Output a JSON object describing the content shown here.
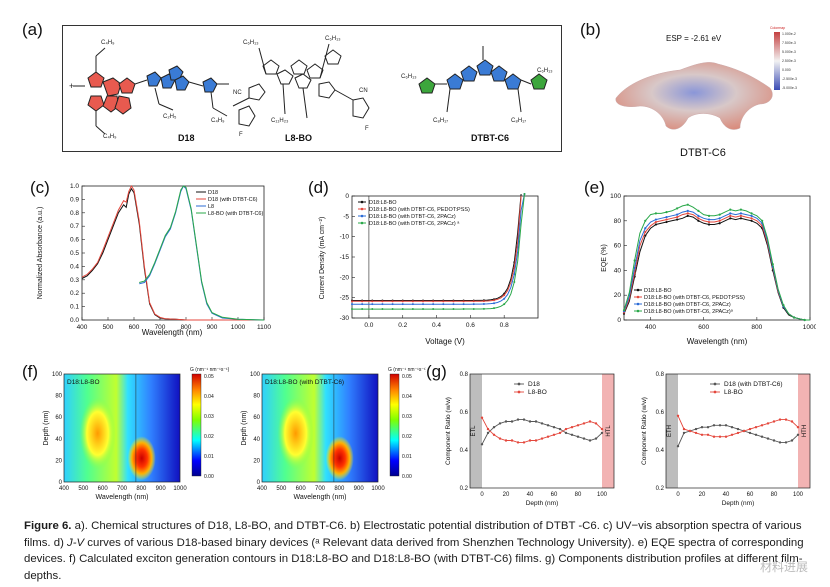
{
  "panels": {
    "a": "(a)",
    "b": "(b)",
    "c": "(c)",
    "d": "(d)",
    "e": "(e)",
    "f": "(f)",
    "g": "(g)"
  },
  "panel_a": {
    "molecules": [
      "D18",
      "L8-BO",
      "DTBT-C6"
    ],
    "labels": {
      "c4h9": "C₄H₉",
      "c6h13": "C₆H₁₃",
      "c2h5": "C₂H₅",
      "c8h17": "C₈H₁₇",
      "c11h23": "C₁₁H₂₃",
      "nc": "NC",
      "cn": "CN",
      "f": "F"
    }
  },
  "panel_b": {
    "esp_text": "ESP = -2.61 eV",
    "molecule_label": "DTBT-C6",
    "colorbar_title": "Colormap",
    "colorbar_ticks": [
      "1.000e-2",
      "7.500e-3",
      "5.000e-3",
      "2.500e-3",
      "0.000",
      "-2.500e-3",
      "-5.000e-3"
    ]
  },
  "panel_c": {
    "chart_data": {
      "type": "line",
      "ylabel": "Normalized Absorbance (a.u.)",
      "xlabel": "Wavelength (nm)",
      "xlim": [
        400,
        1100
      ],
      "ylim": [
        0,
        1.0
      ],
      "xticks": [
        "400",
        "500",
        "600",
        "700",
        "800",
        "900",
        "1000",
        "1100"
      ],
      "yticks": [
        "0.0",
        "0.1",
        "0.2",
        "0.3",
        "0.4",
        "0.5",
        "0.6",
        "0.7",
        "0.8",
        "0.9",
        "1.0"
      ],
      "legend": [
        "D18",
        "D18 (with DTBT-C6)",
        "L8",
        "L8-BO (with DTBT-C6)"
      ],
      "colors": [
        "#111111",
        "#e4473c",
        "#2b6bd6",
        "#2aa84a"
      ],
      "series": [
        {
          "name": "D18",
          "x": [
            400,
            420,
            440,
            460,
            480,
            500,
            520,
            540,
            560,
            570,
            580,
            590,
            600,
            620,
            640,
            660,
            680,
            700,
            720,
            760,
            800,
            900,
            1000,
            1100
          ],
          "y": [
            0.31,
            0.33,
            0.37,
            0.42,
            0.5,
            0.6,
            0.7,
            0.8,
            0.86,
            0.84,
            0.94,
            0.98,
            0.95,
            0.72,
            0.38,
            0.12,
            0.04,
            0.015,
            0.01,
            0.005,
            0,
            0,
            0,
            0
          ]
        },
        {
          "name": "D18 (with DTBT-C6)",
          "x": [
            400,
            420,
            440,
            460,
            480,
            500,
            520,
            540,
            560,
            570,
            580,
            590,
            600,
            620,
            640,
            660,
            680,
            700,
            720,
            760,
            800,
            900,
            1000,
            1100
          ],
          "y": [
            0.32,
            0.34,
            0.38,
            0.43,
            0.52,
            0.62,
            0.72,
            0.82,
            0.89,
            0.88,
            0.96,
            1.0,
            0.97,
            0.74,
            0.4,
            0.13,
            0.045,
            0.02,
            0.01,
            0.005,
            0,
            0,
            0,
            0
          ]
        },
        {
          "name": "L8",
          "x": [
            620,
            640,
            660,
            680,
            700,
            720,
            740,
            760,
            780,
            790,
            800,
            820,
            840,
            860,
            880,
            900,
            940,
            1000,
            1100
          ],
          "y": [
            0.27,
            0.28,
            0.33,
            0.42,
            0.52,
            0.62,
            0.68,
            0.8,
            0.96,
            1.0,
            0.98,
            0.82,
            0.55,
            0.28,
            0.12,
            0.05,
            0.015,
            0.005,
            0
          ]
        },
        {
          "name": "L8-BO (with DTBT-C6)",
          "x": [
            620,
            640,
            660,
            680,
            700,
            720,
            740,
            760,
            780,
            790,
            800,
            820,
            840,
            860,
            880,
            900,
            940,
            1000,
            1100
          ],
          "y": [
            0.28,
            0.29,
            0.34,
            0.43,
            0.53,
            0.63,
            0.69,
            0.81,
            0.97,
            1.0,
            0.99,
            0.83,
            0.56,
            0.29,
            0.13,
            0.055,
            0.02,
            0.005,
            0
          ]
        }
      ]
    }
  },
  "panel_d": {
    "chart_data": {
      "type": "line",
      "ylabel": "Current Density (mA cm⁻²)",
      "xlabel": "Voltage (V)",
      "xlim": [
        -0.1,
        1.0
      ],
      "ylim": [
        -30,
        0
      ],
      "xticks": [
        "0.0",
        "0.2",
        "0.4",
        "0.6",
        "0.8"
      ],
      "yticks": [
        "0",
        "-5",
        "-10",
        "-15",
        "-20",
        "-25",
        "-30"
      ],
      "legend": [
        "D18:L8-BO",
        "D18:L8-BO (with DTBT-C6, PEDOT:PSS)",
        "D18:L8-BO (with DTBT-C6, 2PACz)",
        "D18:L8-BO (with DTBT-C6, 2PACz) ᵃ"
      ],
      "colors": [
        "#111111",
        "#e4473c",
        "#2b6bd6",
        "#2aa84a"
      ],
      "series": [
        {
          "name": "D18:L8-BO",
          "jsc": -25.7,
          "voc": 0.895
        },
        {
          "name": "D18:L8-BO (with DTBT-C6, PEDOT:PSS)",
          "jsc": -25.9,
          "voc": 0.9
        },
        {
          "name": "D18:L8-BO (with DTBT-C6, 2PACz)",
          "jsc": -26.6,
          "voc": 0.905
        },
        {
          "name": "D18:L8-BO (with DTBT-C6, 2PACz) ᵃ",
          "jsc": -27.8,
          "voc": 0.91
        }
      ]
    }
  },
  "panel_e": {
    "chart_data": {
      "type": "line",
      "ylabel": "EQE (%)",
      "xlabel": "Wavelength (nm)",
      "xlim": [
        300,
        1000
      ],
      "ylim": [
        0,
        100
      ],
      "xticks": [
        "400",
        "600",
        "800",
        "1000"
      ],
      "yticks": [
        "0",
        "20",
        "40",
        "60",
        "80",
        "100"
      ],
      "legend": [
        "D18:L8-BO",
        "D18:L8-BO (with DTBT-C6, PEDOT:PSS)",
        "D18:L8-BO (with DTBT-C6, 2PACz)",
        "D18:L8-BO (with DTBT-C6, 2PACz)ᵃ"
      ],
      "colors": [
        "#111111",
        "#e4473c",
        "#2b6bd6",
        "#2aa84a"
      ],
      "series": [
        {
          "name": "D18:L8-BO",
          "x": [
            300,
            320,
            340,
            360,
            380,
            400,
            420,
            440,
            460,
            480,
            500,
            520,
            540,
            560,
            580,
            600,
            620,
            640,
            660,
            680,
            700,
            720,
            740,
            760,
            780,
            800,
            820,
            840,
            860,
            880,
            900,
            920,
            940,
            960,
            980,
            1000
          ],
          "y": [
            5,
            15,
            35,
            55,
            68,
            74,
            77,
            78,
            79,
            80,
            81,
            82,
            84,
            83,
            80,
            78,
            77,
            77,
            78,
            80,
            82,
            81,
            82,
            81,
            80,
            78,
            74,
            60,
            40,
            22,
            10,
            4,
            2,
            1,
            0,
            0
          ]
        },
        {
          "name": "D18:L8-BO (with DTBT-C6, PEDOT:PSS)",
          "x": [
            300,
            320,
            340,
            360,
            380,
            400,
            420,
            440,
            460,
            480,
            500,
            520,
            540,
            560,
            580,
            600,
            620,
            640,
            660,
            680,
            700,
            720,
            740,
            760,
            780,
            800,
            820,
            840,
            860,
            880,
            900,
            920,
            940,
            960,
            980,
            1000
          ],
          "y": [
            6,
            17,
            38,
            60,
            71,
            76,
            79,
            80,
            81,
            82,
            83,
            85,
            86,
            85,
            82,
            80,
            79,
            79,
            80,
            82,
            84,
            83,
            84,
            83,
            82,
            80,
            76,
            62,
            42,
            23,
            11,
            5,
            2,
            1,
            0,
            0
          ]
        },
        {
          "name": "D18:L8-BO (with DTBT-C6, 2PACz)",
          "x": [
            300,
            320,
            340,
            360,
            380,
            400,
            420,
            440,
            460,
            480,
            500,
            520,
            540,
            560,
            580,
            600,
            620,
            640,
            660,
            680,
            700,
            720,
            740,
            760,
            780,
            800,
            820,
            840,
            860,
            880,
            900,
            920,
            940,
            960,
            980,
            1000
          ],
          "y": [
            7,
            19,
            42,
            64,
            74,
            79,
            81,
            82,
            83,
            84,
            85,
            87,
            88,
            87,
            84,
            82,
            81,
            81,
            82,
            84,
            86,
            85,
            86,
            85,
            84,
            82,
            78,
            64,
            43,
            24,
            11,
            5,
            2,
            1,
            0,
            0
          ]
        },
        {
          "name": "D18:L8-BO (with DTBT-C6, 2PACz)ᵃ",
          "x": [
            300,
            320,
            340,
            360,
            380,
            400,
            420,
            440,
            460,
            480,
            500,
            520,
            540,
            560,
            580,
            600,
            620,
            640,
            660,
            680,
            700,
            720,
            740,
            760,
            780,
            800,
            820,
            840,
            860,
            880,
            900,
            920,
            940,
            960,
            980,
            1000
          ],
          "y": [
            8,
            22,
            48,
            70,
            80,
            85,
            86,
            86,
            87,
            88,
            90,
            92,
            93,
            91,
            88,
            85,
            84,
            84,
            85,
            87,
            89,
            88,
            89,
            88,
            86,
            84,
            80,
            66,
            45,
            25,
            12,
            5,
            2,
            1,
            0,
            0
          ]
        }
      ]
    }
  },
  "panel_f": {
    "chart_data": [
      {
        "type": "heatmap",
        "title": "D18:L8-BO",
        "xlabel": "Wavelength (nm)",
        "ylabel": "Depth (nm)",
        "xlim": [
          400,
          1000
        ],
        "ylim": [
          0,
          100
        ],
        "xticks": [
          "400",
          "500",
          "600",
          "700",
          "800",
          "900",
          "1000"
        ],
        "yticks": [
          "0",
          "20",
          "40",
          "60",
          "80",
          "100"
        ],
        "colorbar_title": "G (nm⁻¹ nm⁻¹s⁻¹)",
        "colorbar_ticks": [
          "0.05",
          "0.04",
          "0.03",
          "0.02",
          "0.01",
          "0.00"
        ]
      },
      {
        "type": "heatmap",
        "title": "D18:L8-BO (with DTBT-C6)",
        "xlabel": "Wavelength (nm)",
        "ylabel": "Depth (nm)",
        "xlim": [
          400,
          1000
        ],
        "ylim": [
          0,
          100
        ],
        "xticks": [
          "400",
          "500",
          "600",
          "700",
          "800",
          "900",
          "1000"
        ],
        "yticks": [
          "0",
          "20",
          "40",
          "60",
          "80",
          "100"
        ],
        "colorbar_title": "G (nm⁻¹ nm⁻¹s⁻¹)",
        "colorbar_ticks": [
          "0.05",
          "0.04",
          "0.03",
          "0.02",
          "0.01",
          "0.00"
        ]
      }
    ]
  },
  "panel_g": {
    "chart_data": [
      {
        "type": "line",
        "xlabel": "Depth (nm)",
        "ylabel": "Component Ratio (w/w)",
        "xlim": [
          -10,
          110
        ],
        "ylim": [
          0.2,
          0.8
        ],
        "xticks": [
          "0",
          "20",
          "40",
          "60",
          "80",
          "100"
        ],
        "yticks": [
          "0.2",
          "0.4",
          "0.6",
          "0.8"
        ],
        "left_band": "ETL",
        "right_band": "HTL",
        "series": [
          {
            "name": "D18",
            "x": [
              0,
              5,
              10,
              15,
              20,
              25,
              30,
              35,
              40,
              45,
              50,
              55,
              60,
              65,
              70,
              75,
              80,
              85,
              90,
              95,
              100
            ],
            "y": [
              0.43,
              0.49,
              0.52,
              0.54,
              0.55,
              0.55,
              0.56,
              0.56,
              0.55,
              0.55,
              0.54,
              0.53,
              0.52,
              0.51,
              0.49,
              0.48,
              0.47,
              0.46,
              0.45,
              0.46,
              0.49
            ]
          },
          {
            "name": "L8-BO",
            "x": [
              0,
              5,
              10,
              15,
              20,
              25,
              30,
              35,
              40,
              45,
              50,
              55,
              60,
              65,
              70,
              75,
              80,
              85,
              90,
              95,
              100
            ],
            "y": [
              0.57,
              0.51,
              0.48,
              0.46,
              0.45,
              0.45,
              0.44,
              0.44,
              0.45,
              0.45,
              0.46,
              0.47,
              0.48,
              0.49,
              0.51,
              0.52,
              0.53,
              0.54,
              0.55,
              0.54,
              0.51
            ]
          }
        ]
      },
      {
        "type": "line",
        "xlabel": "Depth (nm)",
        "ylabel": "Component Ratio (w/w)",
        "xlim": [
          -10,
          110
        ],
        "ylim": [
          0.2,
          0.8
        ],
        "xticks": [
          "0",
          "20",
          "40",
          "60",
          "80",
          "100"
        ],
        "yticks": [
          "0.2",
          "0.4",
          "0.6",
          "0.8"
        ],
        "left_band": "ETH",
        "right_band": "HTH",
        "series": [
          {
            "name": "D18 (with DTBT-C6)",
            "x": [
              0,
              5,
              10,
              15,
              20,
              25,
              30,
              35,
              40,
              45,
              50,
              55,
              60,
              65,
              70,
              75,
              80,
              85,
              90,
              95,
              100
            ],
            "y": [
              0.42,
              0.49,
              0.5,
              0.51,
              0.52,
              0.52,
              0.53,
              0.53,
              0.53,
              0.52,
              0.51,
              0.5,
              0.49,
              0.48,
              0.47,
              0.46,
              0.45,
              0.44,
              0.44,
              0.45,
              0.48
            ]
          },
          {
            "name": "L8-BO",
            "x": [
              0,
              5,
              10,
              15,
              20,
              25,
              30,
              35,
              40,
              45,
              50,
              55,
              60,
              65,
              70,
              75,
              80,
              85,
              90,
              95,
              100
            ],
            "y": [
              0.58,
              0.51,
              0.5,
              0.49,
              0.48,
              0.48,
              0.47,
              0.47,
              0.47,
              0.48,
              0.49,
              0.5,
              0.51,
              0.52,
              0.53,
              0.54,
              0.55,
              0.56,
              0.56,
              0.55,
              0.52
            ]
          }
        ]
      }
    ]
  },
  "caption": {
    "label": "Figure 6.",
    "text": " a). Chemical structures of D18, L8-BO, and DTBT-C6. b) Electrostatic potential distribution of DTBT -C6. c) UV−vis absorption spectra of various films. d) ",
    "jv": "J-V",
    "text2": " curves of various D18-based binary devices (ᵃ Relevant data derived from Shenzhen Technology University). e) EQE spectra of corresponding devices. f) Calculated exciton generation contours in D18:L8-BO and D18:L8-BO (with DTBT-C6) films. g) Components distribution profiles at different film-depths."
  },
  "watermark": "材料进展"
}
